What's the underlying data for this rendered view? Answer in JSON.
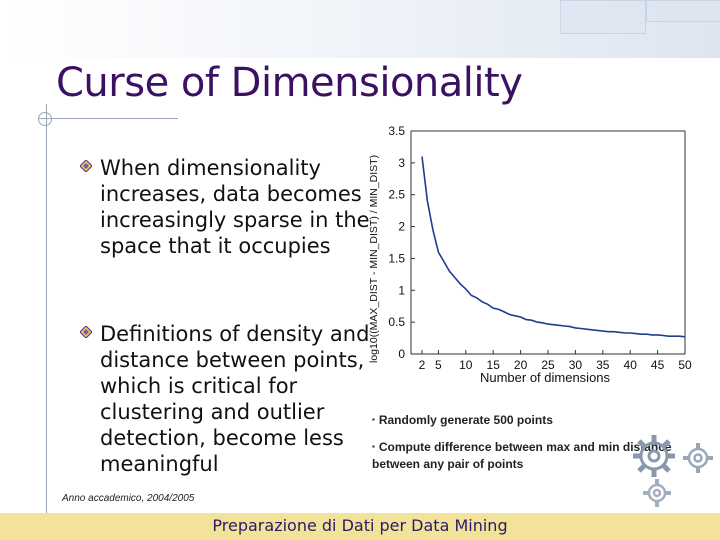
{
  "slide": {
    "title": "Curse of Dimensionality",
    "bullets": [
      "When dimensionality increases, data becomes increasingly sparse in the space that it occupies",
      "Definitions of density and distance between points, which is critical for clustering and outlier detection, become less meaningful"
    ],
    "notes": [
      "Randomly generate 500 points",
      "Compute difference between max and min distance between any pair of points"
    ],
    "footer_left": "Anno accademico, 2004/2005",
    "footer_center": "Preparazione di Dati per Data Mining"
  },
  "colors": {
    "title": "#3b1163",
    "line": "#1f3d8f",
    "footer_bar": "#f3e39a"
  },
  "chart_data": {
    "type": "line",
    "xlabel": "Number of dimensions",
    "ylabel": "log10((MAX_DIST - MIN_DIST) / MIN_DIST)",
    "xlim": [
      0,
      50
    ],
    "ylim": [
      0,
      3.5
    ],
    "xticks": [
      "2",
      "5",
      "10",
      "15",
      "20",
      "25",
      "30",
      "35",
      "40",
      "45",
      "50"
    ],
    "yticks": [
      "0",
      "0.5",
      "1",
      "1.5",
      "2",
      "2.5",
      "3",
      "3.5"
    ],
    "grid": false,
    "x": [
      2,
      3,
      4,
      5,
      6,
      7,
      8,
      9,
      10,
      11,
      12,
      13,
      14,
      15,
      16,
      17,
      18,
      19,
      20,
      21,
      22,
      23,
      24,
      25,
      26,
      27,
      28,
      29,
      30,
      31,
      32,
      33,
      34,
      35,
      36,
      37,
      38,
      39,
      40,
      41,
      42,
      43,
      44,
      45,
      46,
      47,
      48,
      49,
      50
    ],
    "y": [
      3.1,
      2.4,
      1.95,
      1.6,
      1.45,
      1.3,
      1.2,
      1.1,
      1.02,
      0.92,
      0.88,
      0.82,
      0.78,
      0.72,
      0.7,
      0.66,
      0.62,
      0.6,
      0.58,
      0.54,
      0.53,
      0.5,
      0.49,
      0.47,
      0.46,
      0.45,
      0.44,
      0.43,
      0.41,
      0.4,
      0.39,
      0.38,
      0.37,
      0.36,
      0.35,
      0.35,
      0.34,
      0.33,
      0.33,
      0.32,
      0.31,
      0.31,
      0.3,
      0.3,
      0.29,
      0.28,
      0.28,
      0.28,
      0.27
    ]
  }
}
